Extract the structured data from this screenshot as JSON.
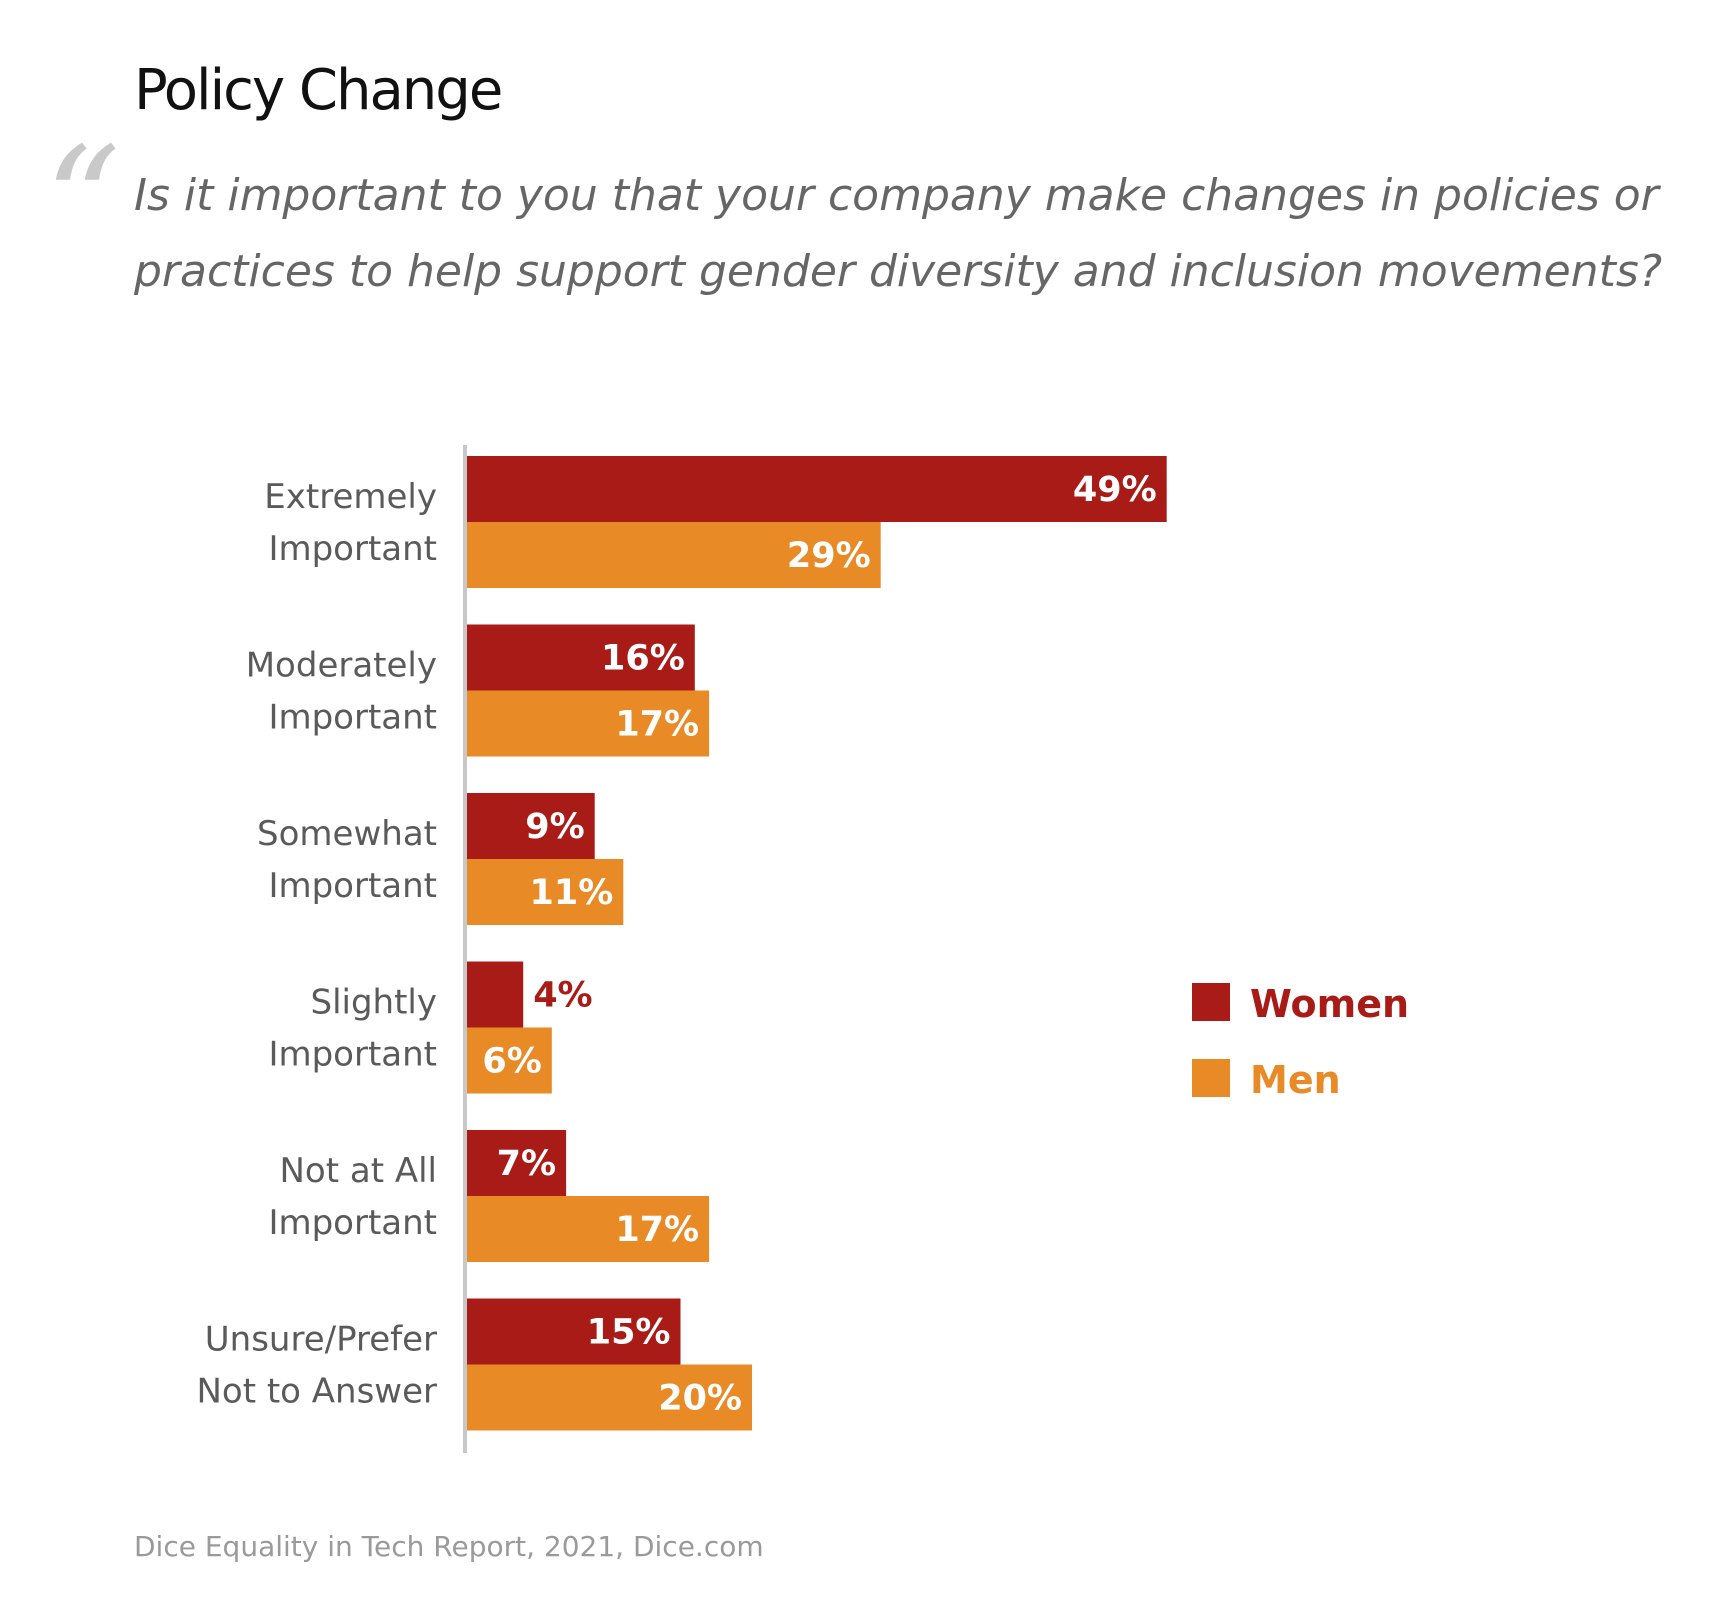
{
  "title": "Policy Change",
  "question": "Is it important to you that your company make changes in policies or practices to help support gender diversity and inclusion movements?",
  "source": "Dice Equality in Tech Report, 2021, Dice.com",
  "colors": {
    "women": "#a81b17",
    "men": "#e88b26"
  },
  "chart_data": {
    "type": "bar",
    "orientation": "horizontal",
    "categories": [
      [
        "Extremely",
        "Important"
      ],
      [
        "Moderately",
        "Important"
      ],
      [
        "Somewhat",
        "Important"
      ],
      [
        "Slightly",
        "Important"
      ],
      [
        "Not at All",
        "Important"
      ],
      [
        "Unsure/Prefer",
        "Not to Answer"
      ]
    ],
    "series": [
      {
        "name": "Women",
        "values": [
          49,
          16,
          9,
          4,
          7,
          15
        ],
        "labels": [
          "49%",
          "16%",
          "9%",
          "4%",
          "7%",
          "15%"
        ]
      },
      {
        "name": "Men",
        "values": [
          29,
          17,
          11,
          6,
          17,
          20
        ],
        "labels": [
          "29%",
          "17%",
          "11%",
          "6%",
          "17%",
          "20%"
        ]
      }
    ],
    "legend": "right",
    "grid": false
  }
}
